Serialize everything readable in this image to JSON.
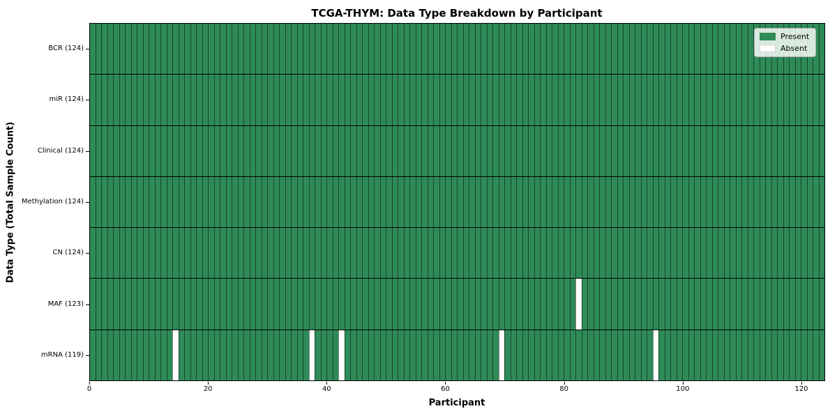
{
  "chart_data": {
    "type": "heatmap",
    "title": "TCGA-THYM: Data Type Breakdown by Participant",
    "xlabel": "Participant",
    "ylabel": "Data Type (Total Sample Count)",
    "x_ticks": [
      0,
      20,
      40,
      60,
      80,
      100,
      120
    ],
    "xlim": [
      0,
      124
    ],
    "n_participants": 124,
    "grid": false,
    "categories": [
      "BCR (124)",
      "miR (124)",
      "Clinical (124)",
      "Methylation (124)",
      "CN (124)",
      "MAF (123)",
      "mRNA (119)"
    ],
    "rows": [
      {
        "label": "BCR (124)",
        "data_type": "BCR",
        "present_count": 124,
        "absent_participants": []
      },
      {
        "label": "miR (124)",
        "data_type": "miR",
        "present_count": 124,
        "absent_participants": []
      },
      {
        "label": "Clinical (124)",
        "data_type": "Clinical",
        "present_count": 124,
        "absent_participants": []
      },
      {
        "label": "Methylation (124)",
        "data_type": "Methylation",
        "present_count": 124,
        "absent_participants": []
      },
      {
        "label": "CN (124)",
        "data_type": "CN",
        "present_count": 124,
        "absent_participants": []
      },
      {
        "label": "MAF (123)",
        "data_type": "MAF",
        "present_count": 123,
        "absent_participants": [
          82
        ]
      },
      {
        "label": "mRNA (119)",
        "data_type": "mRNA",
        "present_count": 119,
        "absent_participants": [
          14,
          37,
          42,
          69,
          95
        ]
      }
    ],
    "legend": {
      "position": "upper right",
      "entries": [
        {
          "label": "Present",
          "color": "#2e8b57"
        },
        {
          "label": "Absent",
          "color": "#ffffff"
        }
      ]
    },
    "colors": {
      "present": "#2e8b57",
      "absent": "#ffffff",
      "cell_edge": "rgba(0,0,0,0.50)",
      "row_divider": "#000000",
      "axis": "#000000"
    }
  }
}
